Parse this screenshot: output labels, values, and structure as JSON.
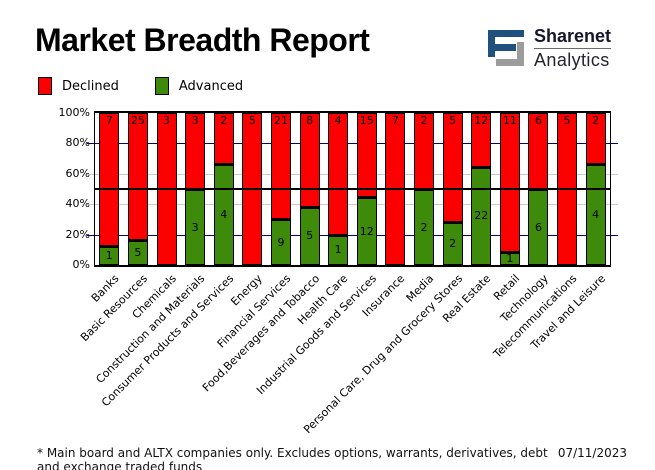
{
  "header": {
    "title": "Market Breadth Report",
    "logo": {
      "brand_top": "Sharenet",
      "brand_bottom": "Analytics",
      "icon_blue": "#20507e",
      "icon_gray": "#9c9c9c"
    }
  },
  "legend": [
    {
      "label": "Declined",
      "color": "#fb0000"
    },
    {
      "label": "Advanced",
      "color": "#3e8a0a"
    }
  ],
  "chart_data": {
    "type": "bar",
    "stacked": true,
    "normalized": "percent-of-total",
    "title": "Market Breadth Report",
    "xlabel": "",
    "ylabel": "",
    "ylim": [
      0,
      100
    ],
    "y_ticks": [
      100,
      80,
      60,
      40,
      20,
      0
    ],
    "y_tick_labels": [
      "100%",
      "80%",
      "60%",
      "40%",
      "20%",
      "0%"
    ],
    "legend_position": "top-left",
    "grid": true,
    "gridlines": [
      {
        "value": 80,
        "color": "#000080"
      },
      {
        "value": 60,
        "color": "#c9c9c9"
      },
      {
        "value": 40,
        "color": "#c9c9c9"
      },
      {
        "value": 20,
        "color": "#000080"
      }
    ],
    "reference_line": {
      "value": 50,
      "color": "#000000"
    },
    "categories": [
      "Banks",
      "Basic Resources",
      "Chemicals",
      "Construction and Materials",
      "Consumer Products and Services",
      "Energy",
      "Financial Services",
      "Food,Beverages and Tobacco",
      "Health Care",
      "Industrial Goods and Services",
      "Insurance",
      "Media",
      "Personal Care, Drug and Grocery Stores",
      "Real Estate",
      "Retail",
      "Technology",
      "Telecommunications",
      "Travel and Leisure"
    ],
    "series": [
      {
        "name": "Declined",
        "color": "#fb0000",
        "values": [
          7,
          25,
          3,
          3,
          2,
          5,
          21,
          8,
          4,
          15,
          7,
          2,
          5,
          12,
          11,
          6,
          5,
          2
        ]
      },
      {
        "name": "Advanced",
        "color": "#3e8a0a",
        "values": [
          1,
          5,
          0,
          3,
          4,
          0,
          9,
          5,
          1,
          12,
          0,
          2,
          2,
          22,
          1,
          6,
          0,
          4
        ]
      }
    ]
  },
  "footer": {
    "note": "* Main board and ALTX companies only. Excludes options, warrants, derivatives, debt and exchange traded funds",
    "date": "07/11/2023"
  }
}
